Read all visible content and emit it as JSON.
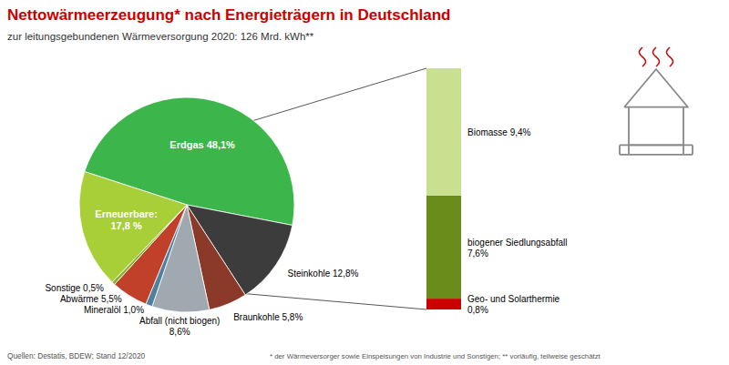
{
  "chart_data": [
    {
      "type": "pie",
      "title": "Nettowärmeerzeugung* nach Energieträgern in Deutschland",
      "subtitle": "zur leitungsgebundenen Wärmeversorgung 2020: 126 Mrd. kWh**",
      "annotations": [
        "Quellen: Destatis, BDEW; Stand 12/2020",
        "* der Wärmeversorger sowie Einspeisungen von Industrie und Sonstigen; ** vorläufig, teilweise geschätzt"
      ],
      "categories": [
        "Erdgas 48,1%",
        "Steinkohle 12,8%",
        "Braunkohle 5,8%",
        "Abfall (nicht biogen)\n8,6%",
        "Mineralöl 1,0%",
        "Abwärme 5,5%",
        "Sonstige 0,5%",
        "Erneuerbare:\n17,8 %"
      ],
      "values": [
        48.1,
        12.8,
        5.8,
        8.6,
        1.0,
        5.5,
        0.5,
        17.8
      ],
      "colors": [
        "#3CB54A",
        "#3C3C3C",
        "#8B3A2A",
        "#A0A8B0",
        "#5080A0",
        "#C0402A",
        "#8AB030",
        "#A8CE38"
      ]
    },
    {
      "type": "bar",
      "stacked": true,
      "categories": [
        null
      ],
      "series": [
        {
          "name": "Biomasse 9,4%",
          "color": "#C8E090",
          "values": [
            9.4
          ]
        },
        {
          "name": "biogener Siedlungsabfall\n7,6%",
          "color": "#6A8C1A",
          "values": [
            7.6
          ]
        },
        {
          "name": "Geo- und Solarthermie\n0,8%",
          "color": "#CC0000",
          "values": [
            0.8
          ]
        }
      ],
      "ylim": [
        0,
        17.8
      ],
      "tick_labels": false
    }
  ]
}
